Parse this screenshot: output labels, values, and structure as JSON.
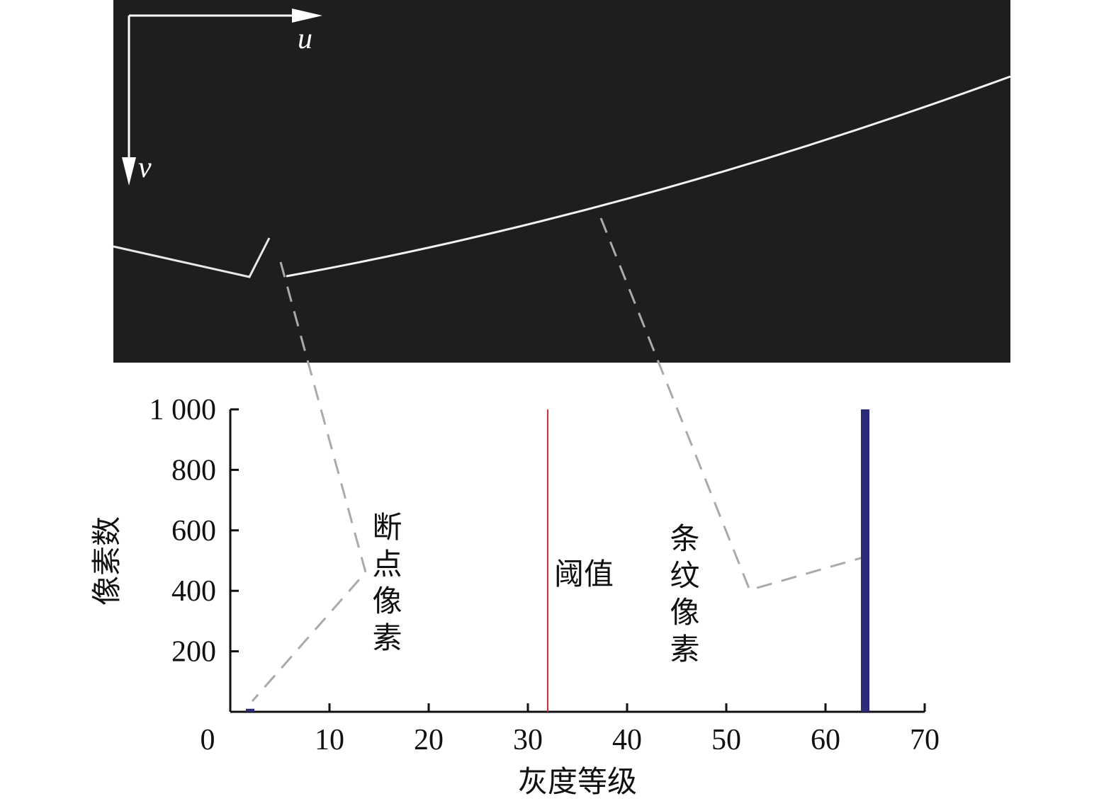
{
  "image": {
    "u_label": "u",
    "v_label": "v"
  },
  "chart_data": {
    "type": "bar",
    "x_label": "灰度等级",
    "y_label": "像素数",
    "x": [
      2,
      64
    ],
    "values": [
      10,
      1000
    ],
    "color": "#2b2b7a",
    "xlim": [
      0,
      70
    ],
    "xticks": [
      0,
      10,
      20,
      30,
      40,
      50,
      60,
      70
    ],
    "ylim": [
      0,
      1000
    ],
    "yticks": [
      200,
      400,
      600,
      800,
      {
        "value": 1000,
        "label": "1 000"
      }
    ],
    "threshold": 32,
    "threshold_color": "#d9303a",
    "threshold_label": "阈值",
    "annotations": [
      "断点像素",
      "条纹像素"
    ]
  }
}
